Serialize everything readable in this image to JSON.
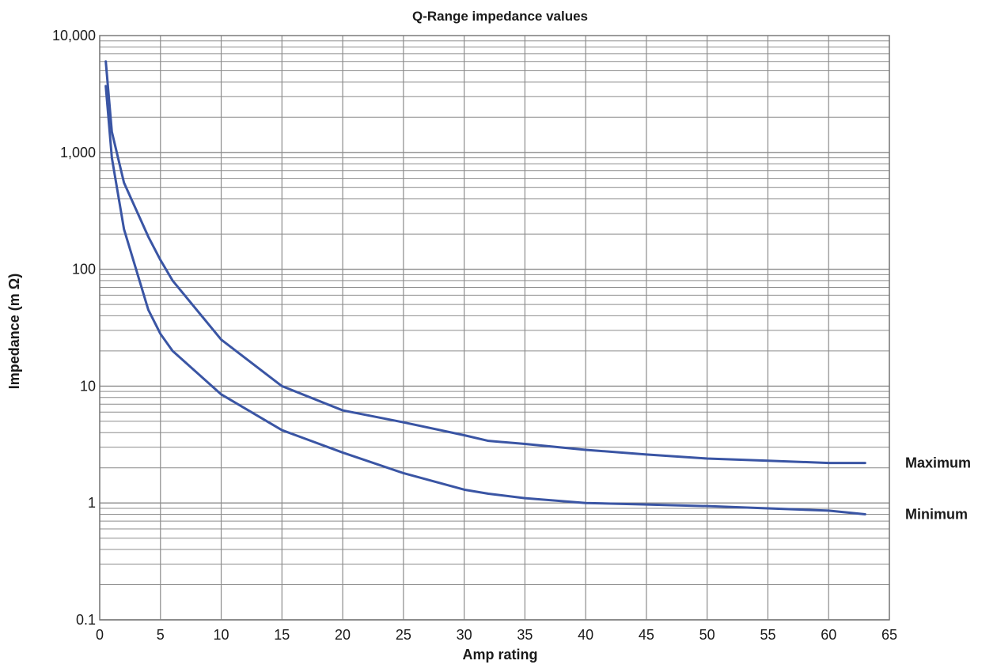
{
  "chart_data": {
    "type": "line",
    "title": "Q-Range impedance values",
    "xlabel": "Amp rating",
    "ylabel": "Impedance (m Ω)",
    "xlim": [
      0,
      65
    ],
    "ylim": [
      0.1,
      10000
    ],
    "yscale": "log",
    "grid": true,
    "x_ticks": [
      {
        "value": 0,
        "label": "0"
      },
      {
        "value": 5,
        "label": "5"
      },
      {
        "value": 10,
        "label": "10"
      },
      {
        "value": 15,
        "label": "15"
      },
      {
        "value": 20,
        "label": "20"
      },
      {
        "value": 25,
        "label": "25"
      },
      {
        "value": 30,
        "label": "30"
      },
      {
        "value": 35,
        "label": "35"
      },
      {
        "value": 40,
        "label": "40"
      },
      {
        "value": 45,
        "label": "45"
      },
      {
        "value": 50,
        "label": "50"
      },
      {
        "value": 55,
        "label": "55"
      },
      {
        "value": 60,
        "label": "60"
      },
      {
        "value": 65,
        "label": "65"
      }
    ],
    "y_ticks": [
      {
        "value": 0.1,
        "label": "0.1"
      },
      {
        "value": 1,
        "label": "1"
      },
      {
        "value": 10,
        "label": "10"
      },
      {
        "value": 100,
        "label": "100"
      },
      {
        "value": 1000,
        "label": "1,000"
      },
      {
        "value": 10000,
        "label": "10,000"
      }
    ],
    "line_color": "#3a55a4",
    "grid_color": "#8c8c8c",
    "series": [
      {
        "name": "Maximum",
        "x": [
          0.5,
          1,
          2,
          4,
          5,
          6,
          10,
          15,
          20,
          25,
          30,
          32,
          35,
          40,
          45,
          50,
          55,
          60,
          63
        ],
        "y": [
          6000,
          1500,
          550,
          190,
          120,
          80,
          25,
          10,
          6.2,
          4.9,
          3.8,
          3.4,
          3.2,
          2.85,
          2.6,
          2.4,
          2.3,
          2.2,
          2.2
        ]
      },
      {
        "name": "Minimum",
        "x": [
          0.5,
          1,
          2,
          4,
          5,
          6,
          10,
          15,
          20,
          25,
          30,
          32,
          35,
          40,
          45,
          50,
          55,
          60,
          63
        ],
        "y": [
          3700,
          900,
          220,
          45,
          28,
          20,
          8.5,
          4.2,
          2.7,
          1.8,
          1.3,
          1.2,
          1.1,
          1.0,
          0.97,
          0.94,
          0.9,
          0.86,
          0.8
        ]
      }
    ]
  }
}
